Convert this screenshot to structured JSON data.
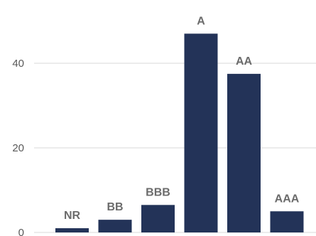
{
  "chart_data": {
    "type": "bar",
    "categories": [
      "NR",
      "BB",
      "BBB",
      "A",
      "AA",
      "AAA"
    ],
    "values": [
      1,
      3,
      6.5,
      47,
      37.5,
      5
    ],
    "data_labels": [
      "NR",
      "BB",
      "BBB",
      "A",
      "AA",
      "AAA"
    ],
    "yticks": [
      0,
      20,
      40
    ],
    "ylim": [
      0,
      50
    ],
    "grid": true,
    "bar_color": "#233358",
    "title": "",
    "xlabel": "",
    "ylabel": ""
  }
}
